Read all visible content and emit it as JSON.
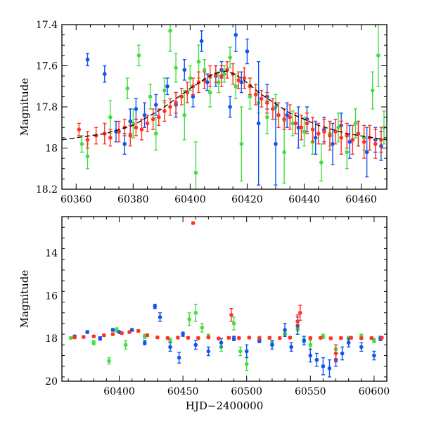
{
  "colors": {
    "green": "#44dd44",
    "blue": "#1155ee",
    "red": "#ff3322",
    "model": "#000000"
  },
  "chart_data": [
    {
      "type": "scatter",
      "title": "",
      "xlabel": "",
      "ylabel": "Magnitude",
      "xlim": [
        60355,
        60469
      ],
      "ylim": [
        18.2,
        17.4
      ],
      "inverted_y": true,
      "grid": false,
      "xticks": [
        "60360",
        "60380",
        "60400",
        "60420",
        "60440",
        "60460"
      ],
      "yticks": [
        "17.4",
        "17.6",
        "17.8",
        "18",
        "18.2"
      ],
      "model_curve": {
        "x": [
          60355,
          60370,
          60380,
          60390,
          60400,
          60408,
          60413,
          60418,
          60425,
          60435,
          60445,
          60455,
          60469
        ],
        "y": [
          17.96,
          17.93,
          17.89,
          17.81,
          17.71,
          17.64,
          17.625,
          17.66,
          17.74,
          17.83,
          17.89,
          17.93,
          17.96
        ]
      },
      "series": [
        {
          "name": "",
          "color": "green",
          "x": [
            60362,
            60364,
            60372,
            60378,
            60380,
            60382,
            60386,
            60388,
            60391,
            60393,
            60395,
            60398,
            60400,
            60402,
            60403,
            60405,
            60407,
            60410,
            60412,
            60414,
            60416,
            60418,
            60421,
            60424,
            60427,
            60430,
            60433,
            60436,
            60440,
            60443,
            60446,
            60449,
            60452,
            60455,
            60458,
            60461,
            60464,
            60466,
            60468
          ],
          "y": [
            17.98,
            18.04,
            17.85,
            17.71,
            17.88,
            17.55,
            17.75,
            17.93,
            17.72,
            17.43,
            17.61,
            17.84,
            17.66,
            18.12,
            17.58,
            17.62,
            17.73,
            17.68,
            17.64,
            17.56,
            17.7,
            17.98,
            17.75,
            17.78,
            17.85,
            17.8,
            18.02,
            17.88,
            17.92,
            17.97,
            18.07,
            17.93,
            17.9,
            18.02,
            17.88,
            17.95,
            17.72,
            17.55,
            17.9
          ],
          "err": [
            0.04,
            0.06,
            0.08,
            0.05,
            0.07,
            0.05,
            0.06,
            0.08,
            0.06,
            0.1,
            0.07,
            0.12,
            0.06,
            0.15,
            0.08,
            0.05,
            0.07,
            0.05,
            0.04,
            0.05,
            0.06,
            0.18,
            0.06,
            0.05,
            0.08,
            0.06,
            0.15,
            0.06,
            0.07,
            0.06,
            0.09,
            0.06,
            0.07,
            0.08,
            0.07,
            0.06,
            0.09,
            0.15,
            0.08
          ]
        },
        {
          "name": "",
          "color": "blue",
          "x": [
            60364,
            60370,
            60374,
            60377,
            60379,
            60381,
            60384,
            60388,
            60392,
            60395,
            60398,
            60401,
            60404,
            60406,
            60409,
            60411,
            60414,
            60416,
            60418,
            60420,
            60424,
            60427,
            60430,
            60434,
            60438,
            60441,
            60444,
            60447,
            60450,
            60453,
            60456,
            60459,
            60462,
            60465,
            60467
          ],
          "y": [
            17.57,
            17.64,
            17.92,
            17.98,
            17.87,
            17.81,
            17.84,
            17.79,
            17.7,
            17.79,
            17.62,
            17.75,
            17.48,
            17.68,
            17.65,
            17.62,
            17.8,
            17.45,
            17.68,
            17.53,
            17.88,
            17.75,
            17.98,
            17.84,
            17.9,
            17.86,
            17.95,
            17.91,
            17.98,
            17.89,
            17.97,
            17.93,
            18.02,
            17.96,
            17.99
          ],
          "err": [
            0.03,
            0.04,
            0.05,
            0.05,
            0.06,
            0.05,
            0.06,
            0.05,
            0.04,
            0.06,
            0.05,
            0.05,
            0.05,
            0.04,
            0.05,
            0.04,
            0.05,
            0.08,
            0.05,
            0.06,
            0.3,
            0.06,
            0.2,
            0.06,
            0.1,
            0.06,
            0.08,
            0.06,
            0.1,
            0.06,
            0.08,
            0.06,
            0.12,
            0.06,
            0.07
          ]
        },
        {
          "name": "",
          "color": "red",
          "x": [
            60361,
            60364,
            60367,
            60370,
            60372,
            60375,
            60377,
            60379,
            60381,
            60383,
            60385,
            60387,
            60389,
            60391,
            60393,
            60395,
            60397,
            60399,
            60401,
            60403,
            60405,
            60407,
            60409,
            60411,
            60413,
            60415,
            60417,
            60419,
            60421,
            60423,
            60425,
            60427,
            60429,
            60431,
            60433,
            60435,
            60437,
            60439,
            60441,
            60443,
            60445,
            60447,
            60449,
            60451,
            60453,
            60455,
            60457,
            60459,
            60461,
            60463,
            60465,
            60467
          ],
          "y": [
            17.91,
            17.96,
            17.94,
            17.93,
            17.95,
            17.92,
            17.9,
            17.94,
            17.9,
            17.91,
            17.88,
            17.86,
            17.85,
            17.82,
            17.8,
            17.78,
            17.75,
            17.73,
            17.7,
            17.68,
            17.67,
            17.65,
            17.64,
            17.65,
            17.62,
            17.64,
            17.67,
            17.66,
            17.7,
            17.74,
            17.76,
            17.78,
            17.81,
            17.84,
            17.86,
            17.85,
            17.88,
            17.9,
            17.88,
            17.91,
            17.93,
            17.92,
            17.94,
            17.92,
            17.95,
            17.94,
            17.96,
            17.93,
            17.97,
            17.95,
            17.98,
            17.96
          ],
          "err": [
            0.03,
            0.04,
            0.04,
            0.05,
            0.04,
            0.05,
            0.04,
            0.05,
            0.04,
            0.05,
            0.04,
            0.05,
            0.04,
            0.05,
            0.04,
            0.05,
            0.04,
            0.05,
            0.04,
            0.05,
            0.04,
            0.05,
            0.04,
            0.05,
            0.04,
            0.05,
            0.04,
            0.05,
            0.04,
            0.05,
            0.04,
            0.05,
            0.05,
            0.06,
            0.05,
            0.06,
            0.05,
            0.06,
            0.05,
            0.06,
            0.05,
            0.06,
            0.07,
            0.06,
            0.08,
            0.06,
            0.07,
            0.06,
            0.08,
            0.06,
            0.07,
            0.06
          ]
        }
      ]
    },
    {
      "type": "scatter",
      "title": "",
      "xlabel": "HJD−2400000",
      "ylabel": "Magnitude",
      "xlim": [
        60355,
        60610
      ],
      "ylim": [
        20,
        12.3
      ],
      "inverted_y": true,
      "grid": false,
      "xticks": [
        "60400",
        "60450",
        "60500",
        "60550",
        "60600"
      ],
      "yticks": [
        "14",
        "16",
        "18",
        "20"
      ],
      "series": [
        {
          "name": "",
          "color": "green",
          "x": [
            60362,
            60380,
            60392,
            60398,
            60405,
            60420,
            60440,
            60455,
            60460,
            60465,
            60470,
            60480,
            60490,
            60495,
            60500,
            60510,
            60520,
            60530,
            60540,
            60545,
            60550,
            60560,
            60570,
            60580,
            60590,
            60600
          ],
          "y": [
            17.98,
            18.2,
            19.05,
            17.6,
            18.3,
            17.9,
            18.1,
            17.1,
            16.8,
            17.5,
            17.9,
            18.4,
            17.3,
            18.6,
            19.2,
            18.0,
            18.2,
            17.8,
            17.6,
            18.1,
            18.3,
            17.9,
            18.5,
            18.0,
            17.9,
            18.1
          ],
          "err": [
            0.05,
            0.1,
            0.15,
            0.1,
            0.2,
            0.1,
            0.1,
            0.3,
            0.4,
            0.2,
            0.1,
            0.2,
            0.3,
            0.2,
            0.3,
            0.1,
            0.1,
            0.1,
            0.2,
            0.1,
            0.2,
            0.1,
            0.2,
            0.1,
            0.1,
            0.1
          ]
        },
        {
          "name": "",
          "color": "blue",
          "x": [
            60365,
            60375,
            60385,
            60395,
            60400,
            60410,
            60420,
            60428,
            60432,
            60440,
            60447,
            60450,
            60460,
            60470,
            60480,
            60490,
            60500,
            60510,
            60520,
            60530,
            60535,
            60540,
            60545,
            60550,
            60555,
            60560,
            60565,
            60570,
            60575,
            60580,
            60590,
            60600,
            60605
          ],
          "y": [
            17.9,
            17.7,
            18.0,
            17.6,
            17.7,
            17.6,
            18.2,
            16.5,
            17.0,
            18.4,
            18.9,
            17.8,
            18.3,
            18.6,
            18.2,
            18.0,
            18.6,
            18.1,
            18.3,
            17.6,
            18.4,
            17.4,
            18.1,
            18.8,
            19.0,
            19.3,
            19.4,
            19.0,
            18.7,
            18.2,
            18.4,
            18.8,
            18.0
          ],
          "err": [
            0.05,
            0.06,
            0.08,
            0.06,
            0.05,
            0.06,
            0.1,
            0.1,
            0.2,
            0.2,
            0.25,
            0.1,
            0.2,
            0.2,
            0.2,
            0.1,
            0.3,
            0.1,
            0.2,
            0.3,
            0.2,
            0.4,
            0.2,
            0.3,
            0.3,
            0.4,
            0.4,
            0.3,
            0.3,
            0.2,
            0.2,
            0.2,
            0.1
          ]
        },
        {
          "name": "",
          "color": "red",
          "x": [
            60365,
            60372,
            60380,
            60388,
            60395,
            60402,
            60408,
            60415,
            60422,
            60430,
            60438,
            60446,
            60454,
            60458,
            60462,
            60470,
            60478,
            60486,
            60488,
            60494,
            60502,
            60510,
            60518,
            60526,
            60534,
            60540,
            60542,
            60550,
            60558,
            60566,
            60570,
            60574,
            60582,
            60590,
            60598,
            60606
          ],
          "y": [
            17.95,
            17.93,
            17.9,
            17.85,
            17.8,
            17.75,
            17.7,
            17.65,
            17.85,
            17.95,
            17.98,
            17.96,
            17.97,
            12.6,
            17.98,
            17.95,
            18.0,
            17.97,
            16.9,
            17.98,
            17.96,
            17.99,
            17.97,
            17.98,
            17.96,
            17.2,
            16.8,
            17.98,
            17.97,
            17.99,
            18.7,
            17.98,
            17.97,
            17.99,
            17.98,
            17.97
          ],
          "err": [
            0.05,
            0.05,
            0.05,
            0.05,
            0.05,
            0.05,
            0.05,
            0.05,
            0.05,
            0.05,
            0.05,
            0.05,
            0.05,
            0.05,
            0.05,
            0.05,
            0.05,
            0.05,
            0.3,
            0.05,
            0.05,
            0.05,
            0.05,
            0.05,
            0.05,
            0.3,
            0.35,
            0.05,
            0.05,
            0.05,
            0.4,
            0.05,
            0.05,
            0.05,
            0.05,
            0.05
          ]
        }
      ]
    }
  ]
}
